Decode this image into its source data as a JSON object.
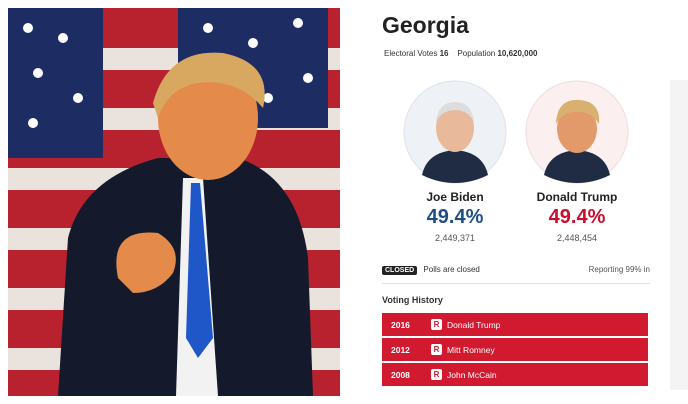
{
  "header": {
    "title": "Georgia",
    "electoral_label": "Electoral Votes",
    "electoral_votes": "16",
    "population_label": "Population",
    "population": "10,620,000"
  },
  "candidates": [
    {
      "name": "Joe Biden",
      "percent": "49.4%",
      "votes": "2,449,371",
      "color": "#1f4e86"
    },
    {
      "name": "Donald Trump",
      "percent": "49.4%",
      "votes": "2,448,454",
      "color": "#c8102e"
    }
  ],
  "status": {
    "badge": "CLOSED",
    "text": "Polls are closed",
    "reporting": "Reporting 99% in"
  },
  "history": {
    "title": "Voting History",
    "rows": [
      {
        "year": "2016",
        "party": "R",
        "name": "Donald Trump"
      },
      {
        "year": "2012",
        "party": "R",
        "name": "Mitt Romney"
      },
      {
        "year": "2008",
        "party": "R",
        "name": "John McCain"
      }
    ]
  }
}
